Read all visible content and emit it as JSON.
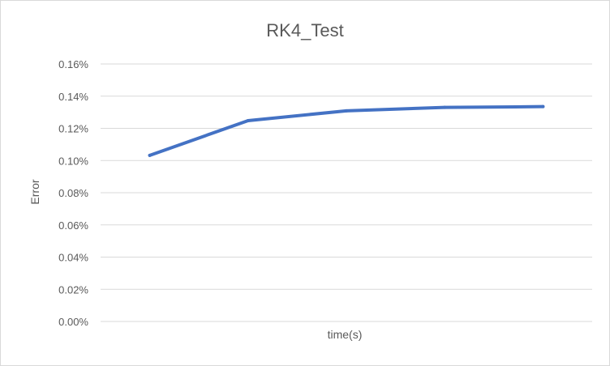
{
  "chart_data": {
    "type": "line",
    "title": "RK4_Test",
    "xlabel": "time(s)",
    "ylabel": "Error",
    "y_tick_labels": [
      "0.00%",
      "0.02%",
      "0.04%",
      "0.06%",
      "0.08%",
      "0.10%",
      "0.12%",
      "0.14%",
      "0.16%"
    ],
    "ylim": [
      0,
      0.16
    ],
    "y_unit": "%",
    "x": [
      1,
      2,
      3,
      4,
      5
    ],
    "series": [
      {
        "values": [
          0.1032,
          0.1248,
          0.1309,
          0.133,
          0.1335
        ],
        "color": "#4472c4"
      }
    ],
    "grid": true,
    "legend": "none"
  }
}
